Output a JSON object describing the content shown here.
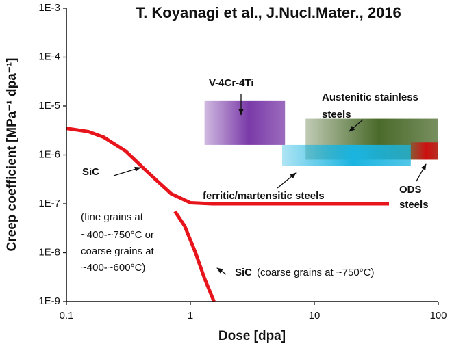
{
  "chart_data": {
    "type": "line",
    "title": "T. Koyanagi et al., J.Nucl.Mater., 2016",
    "xlabel": "Dose [dpa]",
    "ylabel": "Creep coefficient [MPa⁻¹ dpa⁻¹]",
    "xscale": "log",
    "yscale": "log",
    "xlim": [
      0.1,
      100
    ],
    "ylim": [
      1e-09,
      0.001
    ],
    "xticks": [
      0.1,
      1,
      10,
      100
    ],
    "yticks": [
      {
        "value": 0.001,
        "label": "1E-3"
      },
      {
        "value": 0.0001,
        "label": "1E-4"
      },
      {
        "value": 1e-05,
        "label": "1E-5"
      },
      {
        "value": 1e-06,
        "label": "1E-6"
      },
      {
        "value": 1e-07,
        "label": "1E-7"
      },
      {
        "value": 1e-08,
        "label": "1E-8"
      },
      {
        "value": 1e-09,
        "label": "1E-9"
      }
    ],
    "series": [
      {
        "color": "#e8141b",
        "x": [
          0.1,
          0.15,
          0.2,
          0.3,
          0.4,
          0.5,
          0.7,
          1,
          1.5,
          40
        ],
        "values": [
          3.5e-06,
          3e-06,
          2.3e-06,
          1.2e-06,
          6e-07,
          3.5e-07,
          1.6e-07,
          1.05e-07,
          1e-07,
          1e-07
        ]
      },
      {
        "color": "#e8141b",
        "x": [
          0.75,
          0.9,
          1.1,
          1.3,
          1.55
        ],
        "values": [
          7e-08,
          3.5e-08,
          1e-08,
          3e-09,
          1e-09
        ]
      }
    ],
    "regions": [
      {
        "color": "#7a3aa8",
        "x": [
          1.3,
          5.8
        ],
        "y": [
          1.6e-06,
          1.3e-05
        ]
      },
      {
        "color": "#4a6a2a",
        "x": [
          8.5,
          100
        ],
        "y": [
          8e-07,
          5.5e-06
        ]
      },
      {
        "color": "#1ab4e0",
        "x": [
          5.5,
          60
        ],
        "y": [
          6e-07,
          1.6e-06
        ]
      },
      {
        "color": "#cc1010",
        "x": [
          60,
          100
        ],
        "y": [
          8e-07,
          1.8e-06
        ]
      }
    ],
    "annotations": [
      "V-4Cr-4Ti",
      "Austenitic stainless",
      "steels",
      "ferritic/martensitic steels",
      "ODS",
      "steels",
      "SiC",
      "(fine grains at",
      "~400-~750°C or",
      "coarse grains at",
      "~400-~600°C)",
      "SiC",
      "(coarse grains at ~750°C)"
    ]
  }
}
